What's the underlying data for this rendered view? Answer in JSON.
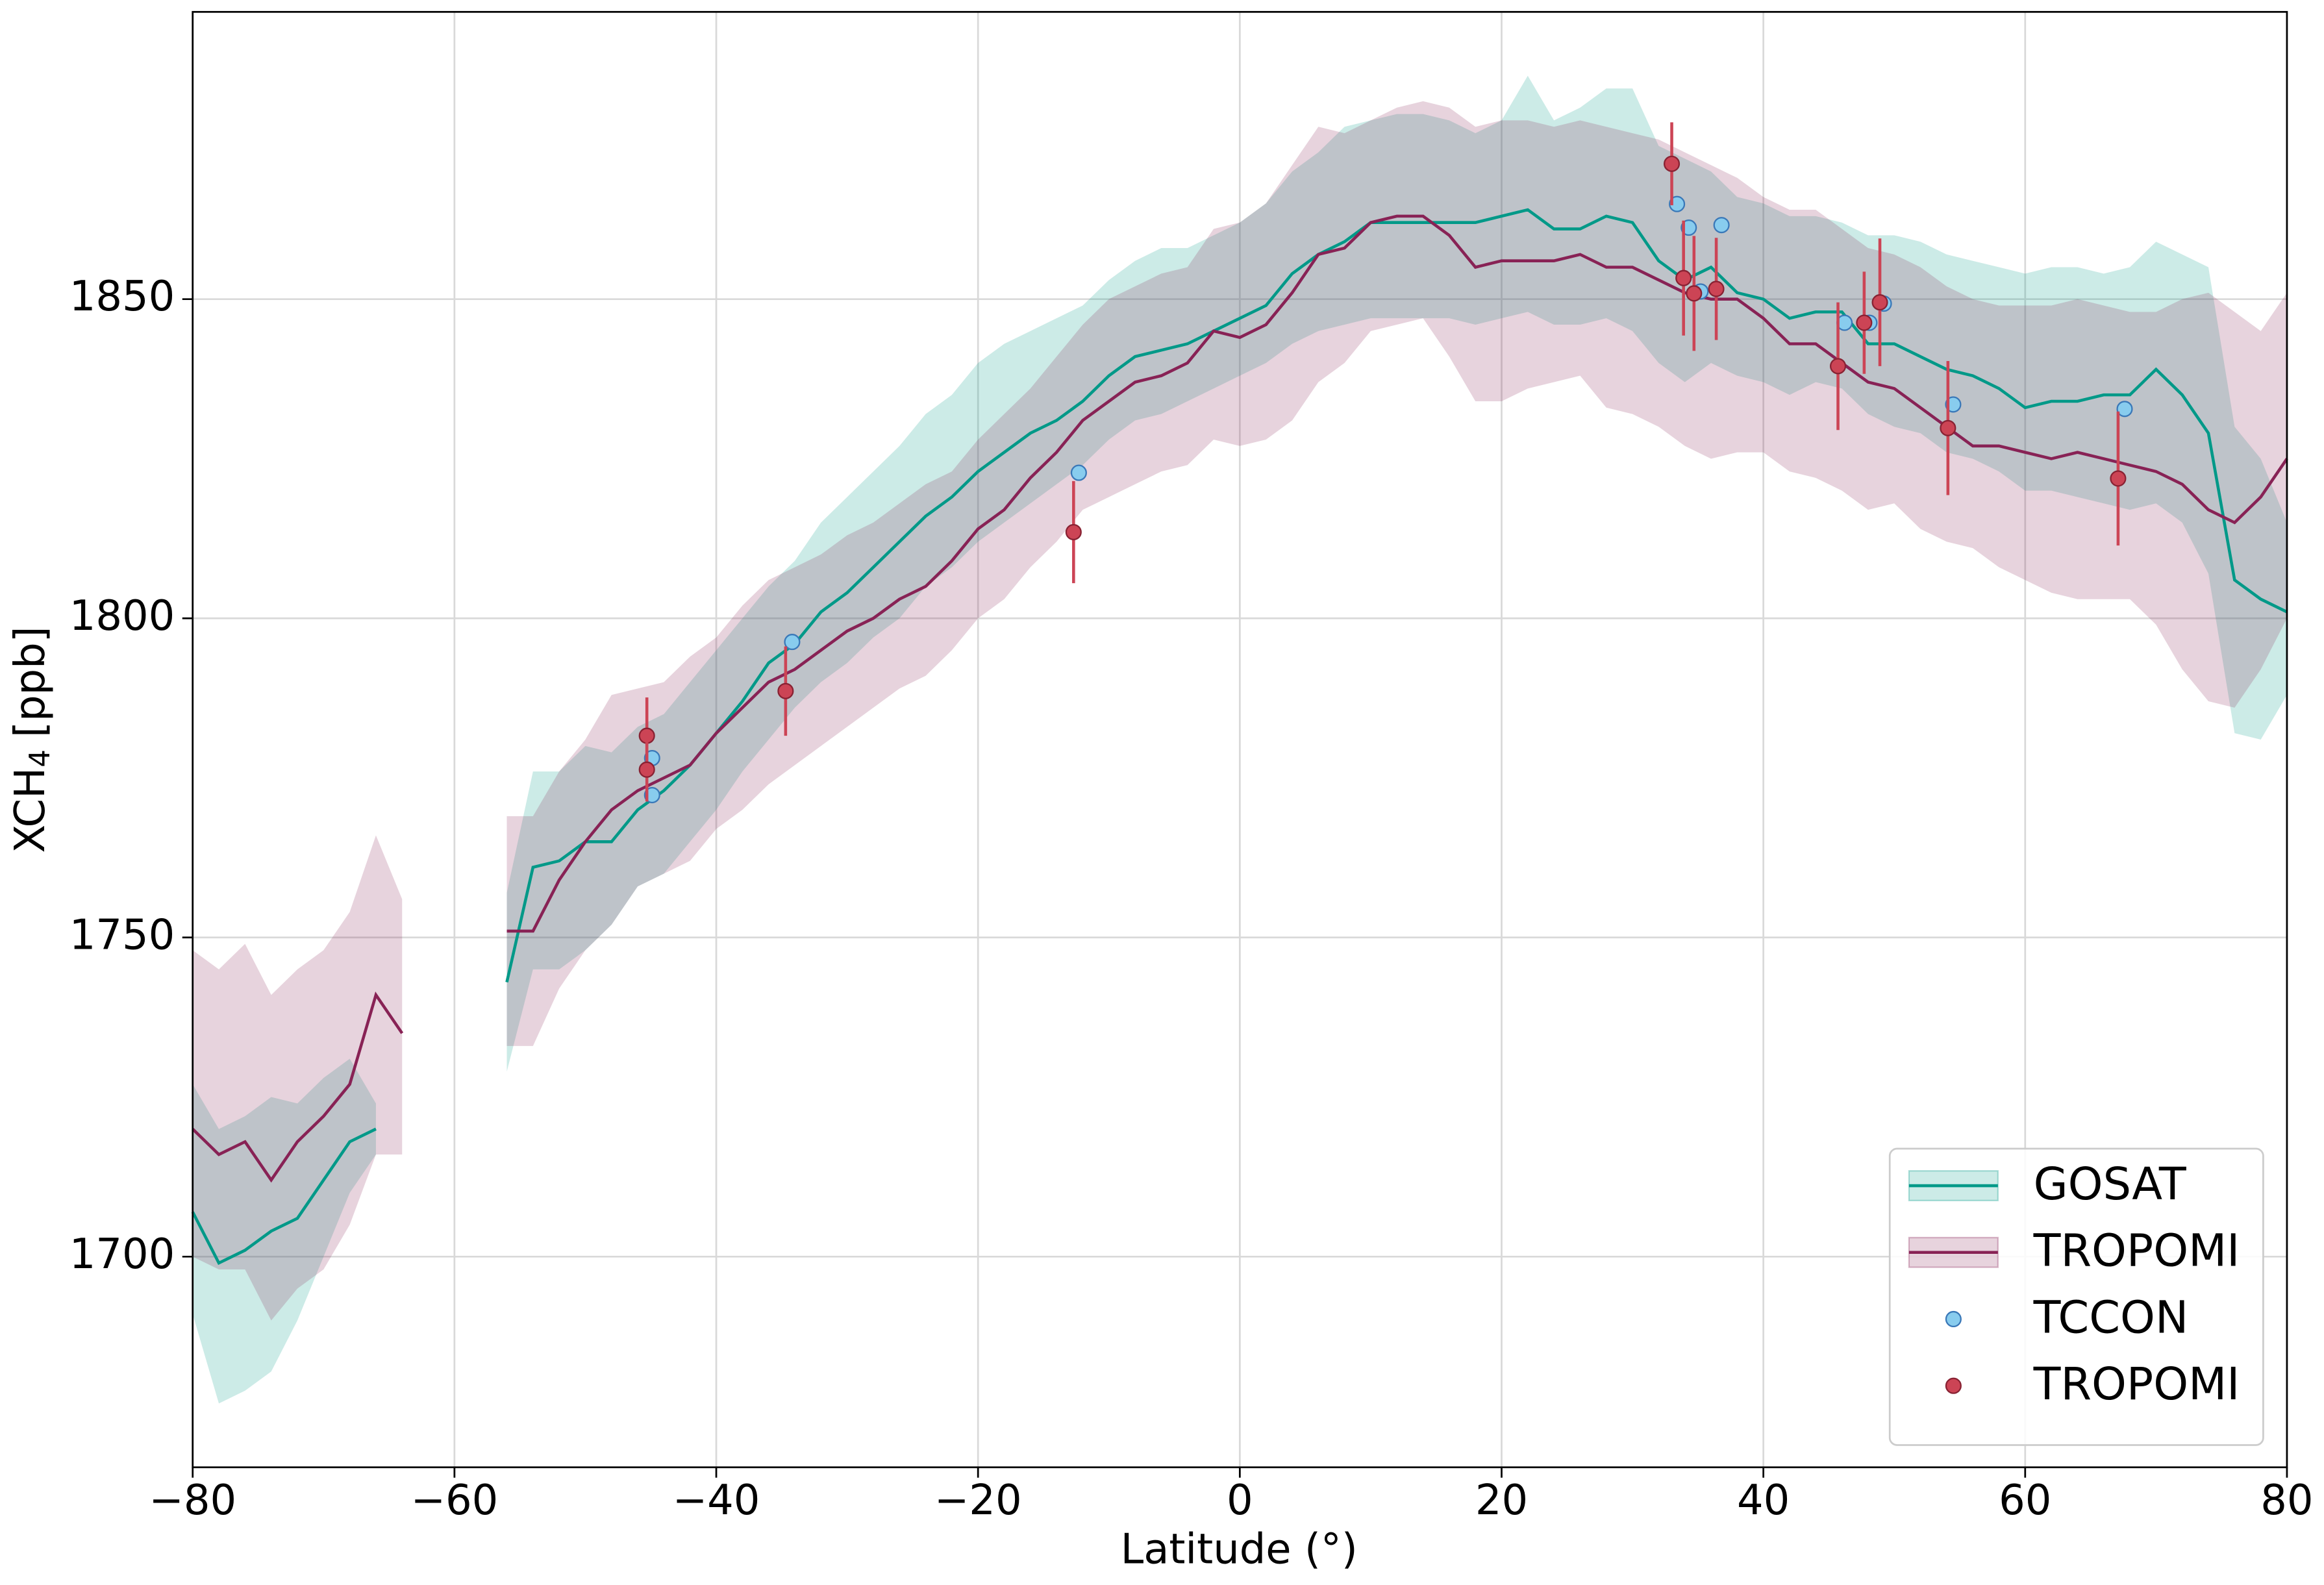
{
  "chart_data": {
    "type": "line",
    "xlabel": "Latitude (°)",
    "ylabel": [
      "XCH",
      "4",
      "[ppb]"
    ],
    "xlim": [
      -80,
      80
    ],
    "ylim": [
      1667,
      1895
    ],
    "xticks": [
      {
        "value": -80,
        "label": "−80"
      },
      {
        "value": -60,
        "label": "−60"
      },
      {
        "value": -40,
        "label": "−40"
      },
      {
        "value": -20,
        "label": "−20"
      },
      0,
      20,
      40,
      60,
      80
    ],
    "yticks": [
      1700,
      1750,
      1800,
      1850
    ],
    "grid": true,
    "legend": "lower right",
    "x": [
      -80,
      -78,
      -76,
      -74,
      -72,
      -70,
      -68,
      -66,
      -64,
      -62,
      -60,
      -58,
      -56,
      -54,
      -52,
      -50,
      -48,
      -46,
      -44,
      -42,
      -40,
      -38,
      -36,
      -34,
      -32,
      -30,
      -28,
      -26,
      -24,
      -22,
      -20,
      -18,
      -16,
      -14,
      -12,
      -10,
      -8,
      -6,
      -4,
      -2,
      0,
      2,
      4,
      6,
      8,
      10,
      12,
      14,
      16,
      18,
      20,
      22,
      24,
      26,
      28,
      30,
      32,
      34,
      36,
      38,
      40,
      42,
      44,
      46,
      48,
      50,
      52,
      54,
      56,
      58,
      60,
      62,
      64,
      66,
      68,
      70,
      72,
      74,
      76,
      78,
      80
    ],
    "series": [
      {
        "name": "GOSAT",
        "type": "band-line",
        "color": "#009988",
        "values": [
          1707,
          1699,
          1701,
          1704,
          1706,
          1712,
          1718,
          1720,
          null,
          null,
          null,
          null,
          1743,
          1761,
          1762,
          1765,
          1765,
          1770,
          1773,
          1777,
          1782,
          1787,
          1793,
          1796,
          1801,
          1804,
          1808,
          1812,
          1816,
          1819,
          1823,
          1826,
          1829,
          1831,
          1834,
          1838,
          1841,
          1842,
          1843,
          1845,
          1847,
          1849,
          1854,
          1857,
          1859,
          1862,
          1862,
          1862,
          1862,
          1862,
          1863,
          1864,
          1861,
          1861,
          1863,
          1862,
          1856,
          1853,
          1855,
          1851,
          1850,
          1847,
          1848,
          1848,
          1843,
          1843,
          1841,
          1839,
          1838,
          1836,
          1833,
          1834,
          1834,
          1835,
          1835,
          1839,
          1835,
          1829,
          1806,
          1803,
          1801
        ],
        "lower": [
          1691,
          1677,
          1679,
          1682,
          1690,
          1700,
          1710,
          1716,
          null,
          null,
          null,
          null,
          1729,
          1745,
          1745,
          1748,
          1752,
          1758,
          1760,
          1765,
          1770,
          1776,
          1781,
          1786,
          1790,
          1793,
          1797,
          1800,
          1805,
          1808,
          1812,
          1815,
          1818,
          1821,
          1824,
          1828,
          1831,
          1832,
          1834,
          1836,
          1838,
          1840,
          1843,
          1845,
          1846,
          1847,
          1847,
          1847,
          1847,
          1846,
          1847,
          1848,
          1846,
          1846,
          1847,
          1845,
          1840,
          1837,
          1840,
          1838,
          1837,
          1835,
          1837,
          1836,
          1832,
          1830,
          1829,
          1826,
          1825,
          1823,
          1820,
          1820,
          1819,
          1818,
          1817,
          1818,
          1815,
          1807,
          1782,
          1781,
          1788
        ],
        "upper": [
          1727,
          1720,
          1722,
          1725,
          1724,
          1728,
          1731,
          1724,
          null,
          null,
          null,
          null,
          1757,
          1776,
          1776,
          1780,
          1779,
          1783,
          1785,
          1790,
          1795,
          1800,
          1805,
          1809,
          1815,
          1819,
          1823,
          1827,
          1832,
          1835,
          1840,
          1843,
          1845,
          1847,
          1849,
          1853,
          1856,
          1858,
          1858,
          1860,
          1862,
          1865,
          1870,
          1873,
          1877,
          1878,
          1879,
          1879,
          1878,
          1876,
          1878,
          1885,
          1878,
          1880,
          1883,
          1883,
          1874,
          1872,
          1870,
          1866,
          1865,
          1863,
          1863,
          1862,
          1860,
          1860,
          1859,
          1857,
          1856,
          1855,
          1854,
          1855,
          1855,
          1854,
          1855,
          1859,
          1857,
          1855,
          1830,
          1825,
          1815
        ]
      },
      {
        "name": "TROPOMI",
        "type": "band-line",
        "color": "#882255",
        "values": [
          1720,
          1716,
          1718,
          1712,
          1718,
          1722,
          1727,
          1741,
          1735,
          null,
          null,
          null,
          1751,
          1751,
          1759,
          1765,
          1770,
          1773,
          1775,
          1777,
          1782,
          1786,
          1790,
          1792,
          1795,
          1798,
          1800,
          1803,
          1805,
          1809,
          1814,
          1817,
          1822,
          1826,
          1831,
          1834,
          1837,
          1838,
          1840,
          1845,
          1844,
          1846,
          1851,
          1857,
          1858,
          1862,
          1863,
          1863,
          1860,
          1855,
          1856,
          1856,
          1856,
          1857,
          1855,
          1855,
          1853,
          1851,
          1850,
          1850,
          1847,
          1843,
          1843,
          1840,
          1837,
          1836,
          1833,
          1830,
          1827,
          1827,
          1826,
          1825,
          1826,
          1825,
          1824,
          1823,
          1821,
          1817,
          1815,
          1819,
          1825
        ],
        "lower": [
          1700,
          1698,
          1698,
          1690,
          1695,
          1698,
          1705,
          1716,
          1716,
          null,
          null,
          null,
          1733,
          1733,
          1742,
          1748,
          1752,
          1758,
          1760,
          1762,
          1767,
          1770,
          1774,
          1777,
          1780,
          1783,
          1786,
          1789,
          1791,
          1795,
          1800,
          1803,
          1808,
          1812,
          1817,
          1819,
          1821,
          1823,
          1824,
          1828,
          1827,
          1828,
          1831,
          1837,
          1840,
          1845,
          1846,
          1847,
          1841,
          1834,
          1834,
          1836,
          1837,
          1838,
          1833,
          1832,
          1830,
          1827,
          1825,
          1826,
          1826,
          1823,
          1822,
          1820,
          1817,
          1818,
          1814,
          1812,
          1811,
          1808,
          1806,
          1804,
          1803,
          1803,
          1803,
          1799,
          1792,
          1787,
          1786,
          1792,
          1800
        ],
        "upper": [
          1748,
          1745,
          1749,
          1741,
          1745,
          1748,
          1754,
          1766,
          1756,
          null,
          null,
          null,
          1769,
          1769,
          1776,
          1781,
          1788,
          1789,
          1790,
          1794,
          1797,
          1802,
          1806,
          1808,
          1810,
          1813,
          1815,
          1818,
          1821,
          1823,
          1828,
          1832,
          1836,
          1841,
          1846,
          1850,
          1852,
          1854,
          1855,
          1861,
          1862,
          1865,
          1871,
          1877,
          1876,
          1878,
          1880,
          1881,
          1880,
          1877,
          1878,
          1878,
          1877,
          1878,
          1877,
          1876,
          1875,
          1873,
          1871,
          1869,
          1866,
          1864,
          1864,
          1861,
          1858,
          1857,
          1855,
          1852,
          1850,
          1849,
          1849,
          1849,
          1850,
          1849,
          1848,
          1848,
          1850,
          1851,
          1848,
          1845,
          1851
        ]
      },
      {
        "name": "TCCON",
        "type": "scatter",
        "color": "#88ccee",
        "edgecolor": "#3a78b8",
        "x": [
          -44.9,
          -44.9,
          -34.2,
          -12.3,
          33.4,
          34.3,
          35.2,
          36.8,
          46.2,
          48.1,
          49.2,
          54.5,
          67.6
        ],
        "values": [
          1778.1,
          1772.3,
          1796.3,
          1822.8,
          1864.9,
          1861.2,
          1851.2,
          1861.6,
          1846.3,
          1846.3,
          1849.3,
          1833.5,
          1832.8
        ]
      },
      {
        "name": "TROPOMI",
        "type": "scatter",
        "color": "#cc4455",
        "edgecolor": "#882233",
        "x": [
          -45.3,
          -45.3,
          -34.7,
          -12.7,
          33.0,
          33.9,
          34.7,
          36.4,
          45.7,
          47.7,
          48.9,
          54.1,
          67.1
        ],
        "values": [
          1781.6,
          1776.3,
          1788.6,
          1813.5,
          1871.2,
          1853.3,
          1850.9,
          1851.6,
          1839.5,
          1846.3,
          1849.5,
          1829.8,
          1821.9
        ],
        "errors": [
          6,
          5,
          7,
          8,
          6.5,
          9,
          9,
          8,
          10,
          8,
          10,
          10.5,
          10.5
        ]
      }
    ]
  }
}
